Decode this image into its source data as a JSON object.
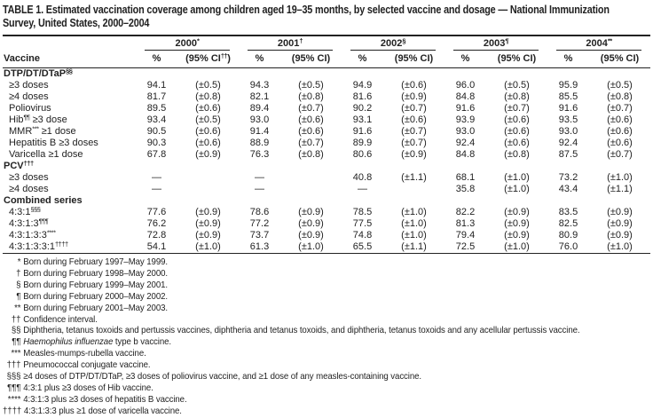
{
  "colors": {
    "text": "#222222",
    "background": "#ffffff",
    "rule": "#222222"
  },
  "title": {
    "line1": "TABLE 1. Estimated vaccination coverage among children aged 19–35 months, by selected vaccine and dosage — National Immunization",
    "line2": "Survey, United States, 2000–2004"
  },
  "table": {
    "vaccine_header": "Vaccine",
    "year_groups": [
      {
        "year": "2000",
        "year_sup": "*",
        "pct_label": "%",
        "ci_pre": "(95% CI",
        "ci_sup": "††",
        "ci_post": ")"
      },
      {
        "year": "2001",
        "year_sup": "†",
        "pct_label": "%",
        "ci_pre": "(95% CI",
        "ci_sup": "",
        "ci_post": ")"
      },
      {
        "year": "2002",
        "year_sup": "§",
        "pct_label": "%",
        "ci_pre": "(95% CI",
        "ci_sup": "",
        "ci_post": ")"
      },
      {
        "year": "2003",
        "year_sup": "¶",
        "pct_label": "%",
        "ci_pre": "(95% CI",
        "ci_sup": "",
        "ci_post": ")"
      },
      {
        "year": "2004",
        "year_sup": "**",
        "pct_label": "%",
        "ci_pre": "(95% CI",
        "ci_sup": "",
        "ci_post": ")"
      }
    ],
    "sections": [
      {
        "header": {
          "pre": "DTP/DT/DTaP",
          "sup": "§§",
          "post": ""
        },
        "rows": [
          {
            "label": {
              "pre": "≥3 doses",
              "sup": "",
              "post": ""
            },
            "values": [
              "94.1",
              "(±0.5)",
              "94.3",
              "(±0.5)",
              "94.9",
              "(±0.6)",
              "96.0",
              "(±0.5)",
              "95.9",
              "(±0.5)"
            ]
          },
          {
            "label": {
              "pre": "≥4 doses",
              "sup": "",
              "post": ""
            },
            "values": [
              "81.7",
              "(±0.8)",
              "82.1",
              "(±0.8)",
              "81.6",
              "(±0.9)",
              "84.8",
              "(±0.8)",
              "85.5",
              "(±0.8)"
            ]
          },
          {
            "label": {
              "pre": "Poliovirus",
              "sup": "",
              "post": ""
            },
            "values": [
              "89.5",
              "(±0.6)",
              "89.4",
              "(±0.7)",
              "90.2",
              "(±0.7)",
              "91.6",
              "(±0.7)",
              "91.6",
              "(±0.7)"
            ]
          },
          {
            "label": {
              "pre": "Hib",
              "sup": "¶¶",
              "post": " ≥3 dose"
            },
            "values": [
              "93.4",
              "(±0.5)",
              "93.0",
              "(±0.6)",
              "93.1",
              "(±0.6)",
              "93.9",
              "(±0.6)",
              "93.5",
              "(±0.6)"
            ]
          },
          {
            "label": {
              "pre": "MMR",
              "sup": "***",
              "post": " ≥1 dose"
            },
            "values": [
              "90.5",
              "(±0.6)",
              "91.4",
              "(±0.6)",
              "91.6",
              "(±0.7)",
              "93.0",
              "(±0.6)",
              "93.0",
              "(±0.6)"
            ]
          },
          {
            "label": {
              "pre": "Hepatitis B ≥3 doses",
              "sup": "",
              "post": ""
            },
            "values": [
              "90.3",
              "(±0.6)",
              "88.9",
              "(±0.7)",
              "89.9",
              "(±0.7)",
              "92.4",
              "(±0.6)",
              "92.4",
              "(±0.6)"
            ]
          },
          {
            "label": {
              "pre": "Varicella ≥1 dose",
              "sup": "",
              "post": ""
            },
            "values": [
              "67.8",
              "(±0.9)",
              "76.3",
              "(±0.8)",
              "80.6",
              "(±0.9)",
              "84.8",
              "(±0.8)",
              "87.5",
              "(±0.7)"
            ]
          }
        ]
      },
      {
        "header": {
          "pre": "PCV",
          "sup": "†††",
          "post": ""
        },
        "rows": [
          {
            "label": {
              "pre": "≥3 doses",
              "sup": "",
              "post": ""
            },
            "values": [
              "—",
              "",
              "—",
              "",
              "40.8",
              "(±1.1)",
              "68.1",
              "(±1.0)",
              "73.2",
              "(±1.0)"
            ]
          },
          {
            "label": {
              "pre": "≥4 doses",
              "sup": "",
              "post": ""
            },
            "values": [
              "—",
              "",
              "—",
              "",
              "—",
              "",
              "35.8",
              "(±1.0)",
              "43.4",
              "(±1.1)"
            ]
          }
        ]
      },
      {
        "header": {
          "pre": "Combined series",
          "sup": "",
          "post": ""
        },
        "rows": [
          {
            "label": {
              "pre": "4:3:1",
              "sup": "§§§",
              "post": ""
            },
            "values": [
              "77.6",
              "(±0.9)",
              "78.6",
              "(±0.9)",
              "78.5",
              "(±1.0)",
              "82.2",
              "(±0.9)",
              "83.5",
              "(±0.9)"
            ]
          },
          {
            "label": {
              "pre": "4:3:1:3",
              "sup": "¶¶¶",
              "post": ""
            },
            "values": [
              "76.2",
              "(±0.9)",
              "77.2",
              "(±0.9)",
              "77.5",
              "(±1.0)",
              "81.3",
              "(±0.9)",
              "82.5",
              "(±0.9)"
            ]
          },
          {
            "label": {
              "pre": "4:3:1:3:3",
              "sup": "****",
              "post": ""
            },
            "values": [
              "72.8",
              "(±0.9)",
              "73.7",
              "(±0.9)",
              "74.8",
              "(±1.0)",
              "79.4",
              "(±0.9)",
              "80.9",
              "(±0.9)"
            ]
          },
          {
            "label": {
              "pre": "4:3:1:3:3:1",
              "sup": "††††",
              "post": ""
            },
            "values": [
              "54.1",
              "(±1.0)",
              "61.3",
              "(±1.0)",
              "65.5",
              "(±1.1)",
              "72.5",
              "(±1.0)",
              "76.0",
              "(±1.0)"
            ]
          }
        ]
      }
    ]
  },
  "footnotes": [
    {
      "marker": "*",
      "segments": [
        {
          "text": "Born during February 1997–May 1999."
        }
      ]
    },
    {
      "marker": "†",
      "segments": [
        {
          "text": "Born during February 1998–May 2000."
        }
      ]
    },
    {
      "marker": "§",
      "segments": [
        {
          "text": "Born during February 1999–May 2001."
        }
      ]
    },
    {
      "marker": "¶",
      "segments": [
        {
          "text": "Born during February 2000–May 2002."
        }
      ]
    },
    {
      "marker": "**",
      "segments": [
        {
          "text": "Born during February 2001–May 2003."
        }
      ]
    },
    {
      "marker": "††",
      "segments": [
        {
          "text": "Confidence interval."
        }
      ]
    },
    {
      "marker": "§§",
      "segments": [
        {
          "text": "Diphtheria, tetanus toxoids and pertussis vaccines, diphtheria and tetanus toxoids, and diphtheria, tetanus toxoids and any acellular pertussis vaccine."
        }
      ]
    },
    {
      "marker": "¶¶",
      "segments": [
        {
          "text": "Haemophilus influenzae",
          "italic": true
        },
        {
          "text": " type b vaccine."
        }
      ]
    },
    {
      "marker": "***",
      "segments": [
        {
          "text": "Measles-mumps-rubella vaccine."
        }
      ]
    },
    {
      "marker": "†††",
      "segments": [
        {
          "text": "Pneumococcal conjugate vaccine."
        }
      ]
    },
    {
      "marker": "§§§",
      "segments": [
        {
          "text": "≥4 doses of DTP/DT/DTaP, ≥3 doses of poliovirus vaccine, and ≥1 dose of any measles-containing vaccine."
        }
      ]
    },
    {
      "marker": "¶¶¶",
      "segments": [
        {
          "text": "4:3:1 plus ≥3 doses of Hib vaccine."
        }
      ]
    },
    {
      "marker": "****",
      "segments": [
        {
          "text": "4:3:1:3 plus ≥3 doses of hepatitis B vaccine."
        }
      ]
    },
    {
      "marker": "††††",
      "segments": [
        {
          "text": "4:3:1:3:3 plus ≥1 dose of varicella vaccine."
        }
      ]
    }
  ]
}
